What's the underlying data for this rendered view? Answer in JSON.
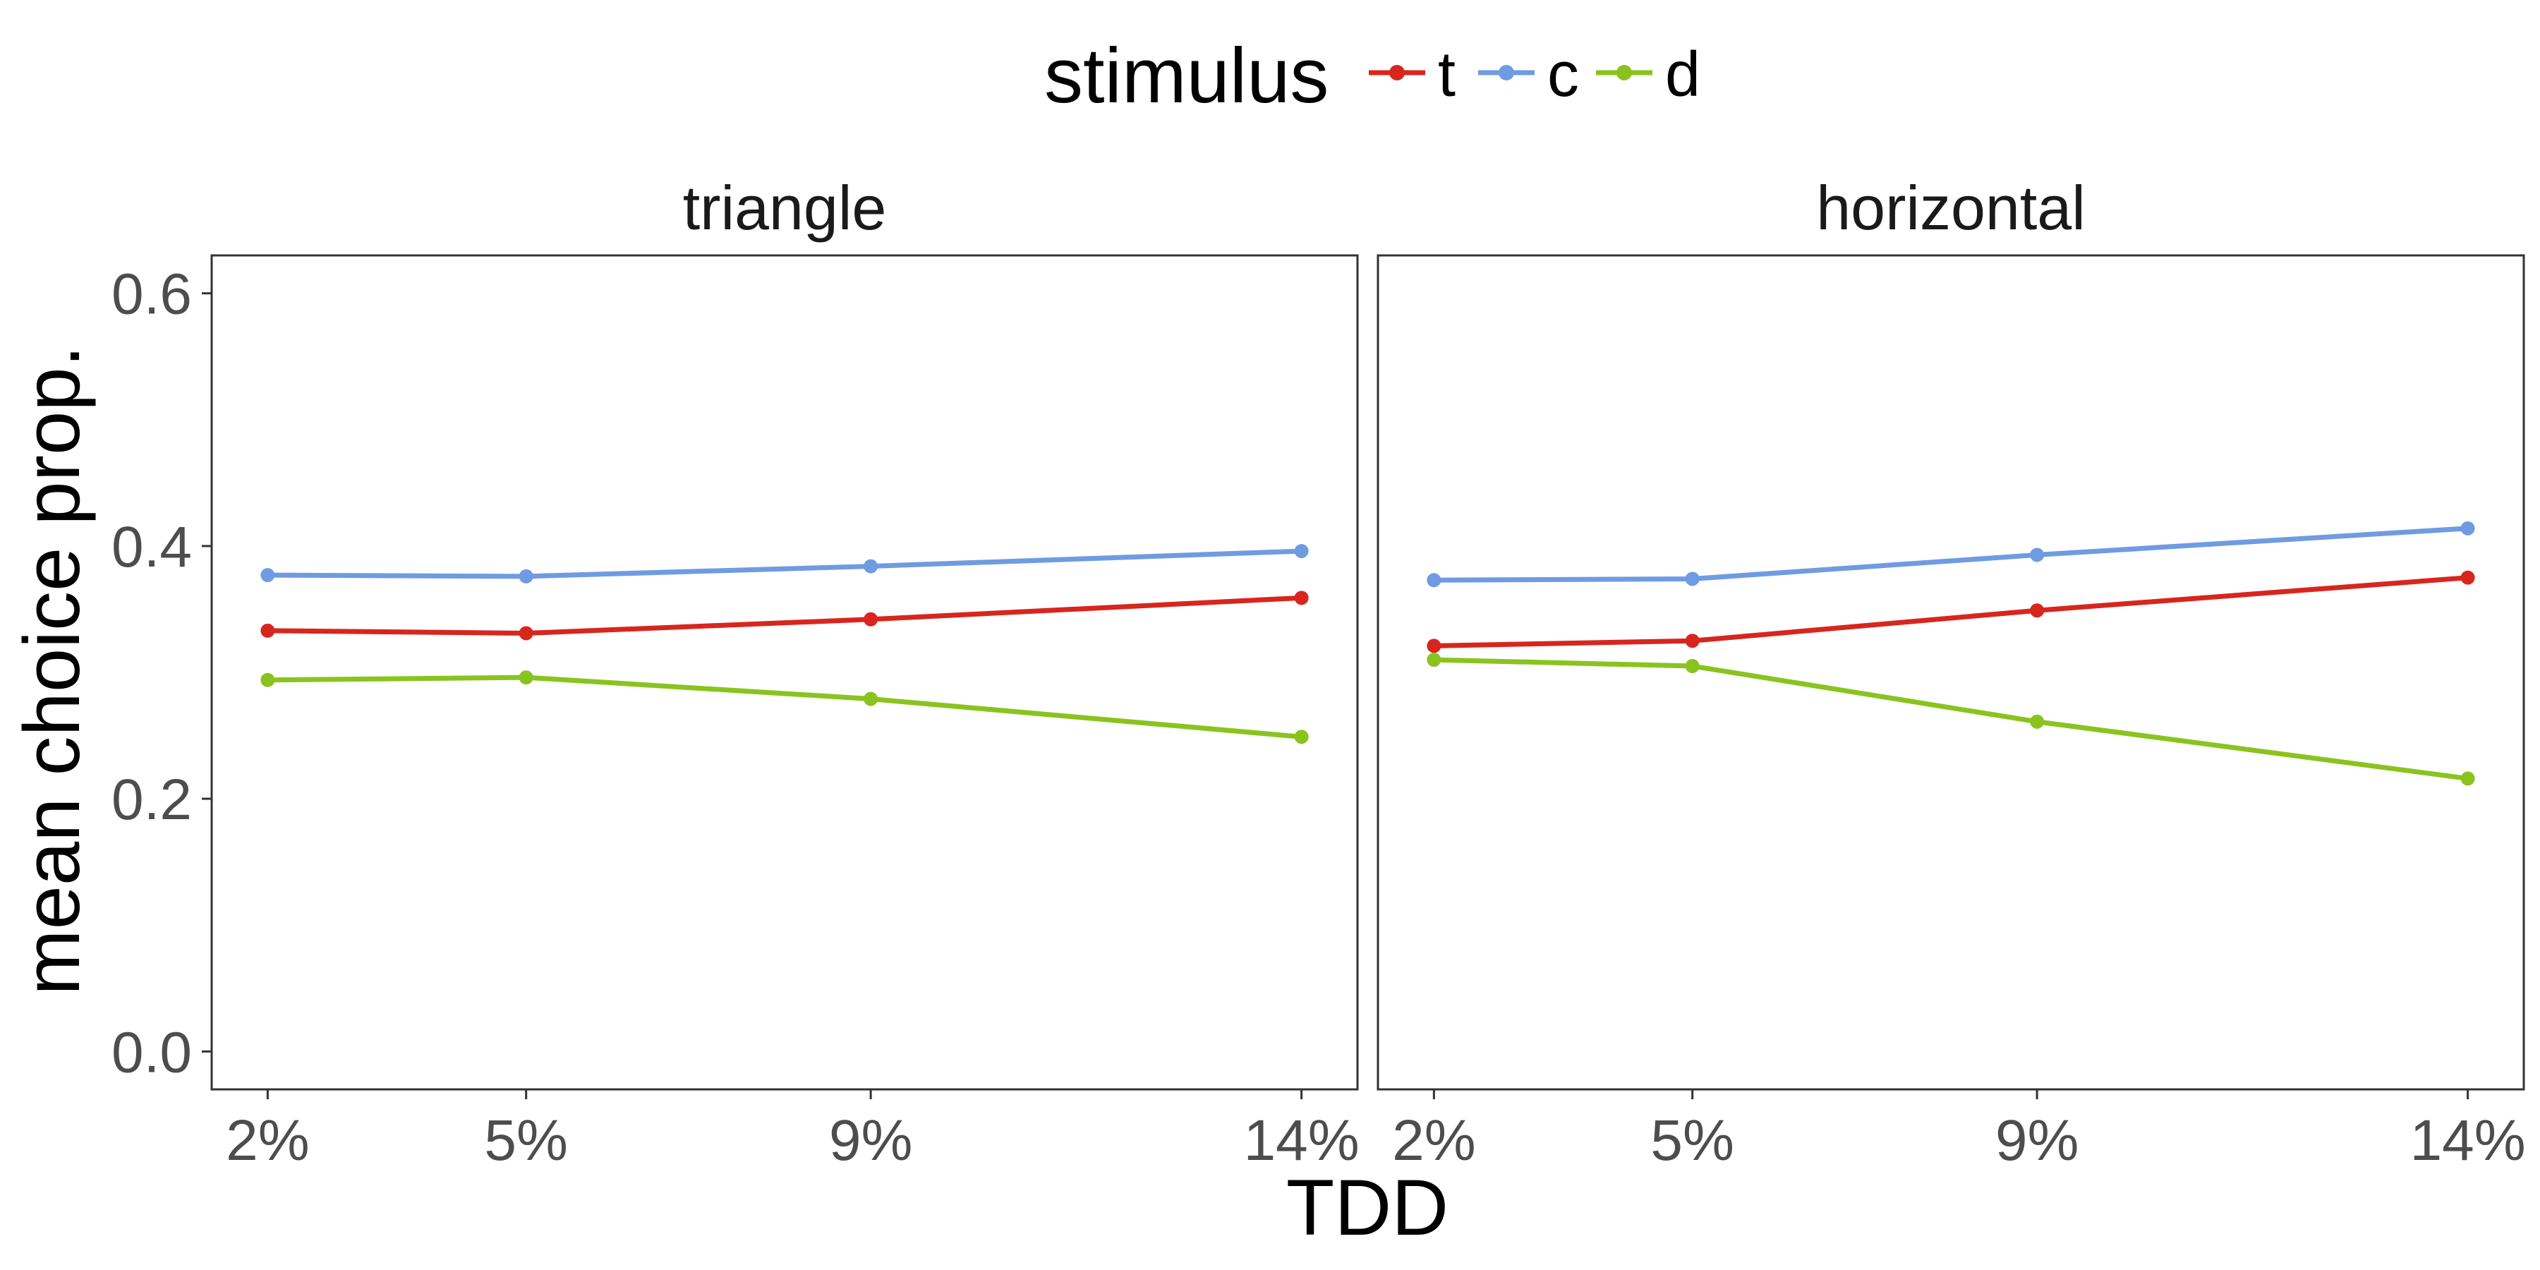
{
  "chart_data": {
    "type": "line",
    "legend": {
      "title": "stimulus",
      "position": "top"
    },
    "xlabel": "TDD",
    "ylabel": "mean choice prop.",
    "x": [
      "2%",
      "5%",
      "9%",
      "14%"
    ],
    "x_numeric": [
      2,
      5,
      9,
      14
    ],
    "ylim": [
      -0.03,
      0.63
    ],
    "yticks": [
      0.0,
      0.2,
      0.4,
      0.6
    ],
    "ytick_labels": [
      "0.0",
      "0.2",
      "0.4",
      "0.6"
    ],
    "grid": false,
    "series_colors": {
      "t": "#d7261e",
      "c": "#6f9be2",
      "d": "#8ac31f"
    },
    "panels": [
      {
        "title": "triangle",
        "series": [
          {
            "name": "t",
            "values": [
              0.333,
              0.331,
              0.342,
              0.359
            ]
          },
          {
            "name": "c",
            "values": [
              0.377,
              0.376,
              0.384,
              0.396
            ]
          },
          {
            "name": "d",
            "values": [
              0.294,
              0.296,
              0.279,
              0.249
            ]
          }
        ]
      },
      {
        "title": "horizontal",
        "series": [
          {
            "name": "t",
            "values": [
              0.321,
              0.325,
              0.349,
              0.375
            ]
          },
          {
            "name": "c",
            "values": [
              0.373,
              0.374,
              0.393,
              0.414
            ]
          },
          {
            "name": "d",
            "values": [
              0.31,
              0.305,
              0.261,
              0.216
            ]
          }
        ]
      }
    ]
  }
}
